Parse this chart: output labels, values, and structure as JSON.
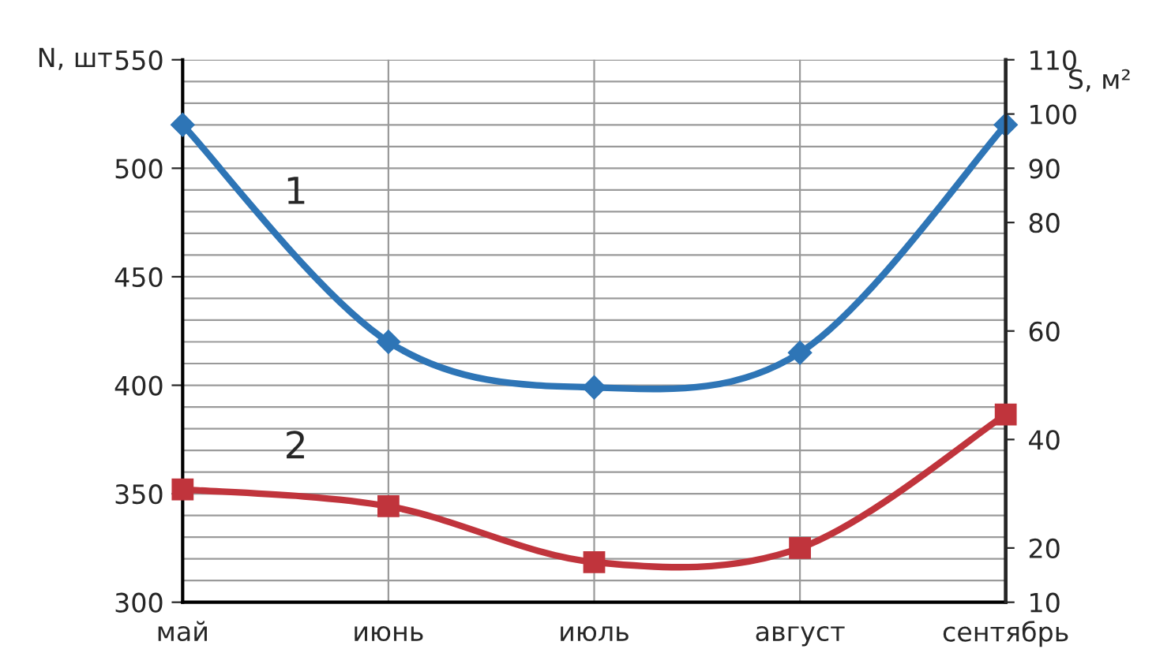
{
  "chart_data": {
    "type": "line",
    "categories": [
      "май",
      "июнь",
      "июль",
      "август",
      "сентябрь"
    ],
    "ylabel": "N, шт",
    "y2label": "S, м²",
    "ylim": [
      300,
      550
    ],
    "yticks": [
      300,
      350,
      400,
      450,
      500,
      550
    ],
    "y2lim": [
      10,
      110
    ],
    "y2ticks": [
      10,
      20,
      40,
      60,
      80,
      90,
      100,
      110
    ],
    "grid": true,
    "legend": false,
    "series": [
      {
        "name": "1",
        "color": "#2e75b6",
        "values": [
          520,
          420,
          399,
          415,
          520
        ],
        "marker": "diamond"
      },
      {
        "name": "2",
        "color": "#c0343c",
        "values": [
          30.8,
          27.7,
          17.4,
          20,
          44.6
        ],
        "marker": "square",
        "axis": "y2"
      }
    ]
  }
}
